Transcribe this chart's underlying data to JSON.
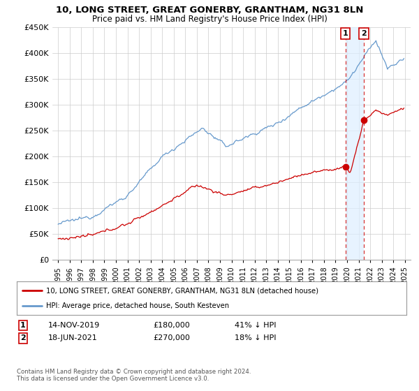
{
  "title": "10, LONG STREET, GREAT GONERBY, GRANTHAM, NG31 8LN",
  "subtitle": "Price paid vs. HM Land Registry's House Price Index (HPI)",
  "legend_line1": "10, LONG STREET, GREAT GONERBY, GRANTHAM, NG31 8LN (detached house)",
  "legend_line2": "HPI: Average price, detached house, South Kesteven",
  "footnote": "Contains HM Land Registry data © Crown copyright and database right 2024.\nThis data is licensed under the Open Government Licence v3.0.",
  "annotation1": {
    "label": "1",
    "date": "14-NOV-2019",
    "price": "£180,000",
    "pct": "41% ↓ HPI"
  },
  "annotation2": {
    "label": "2",
    "date": "18-JUN-2021",
    "price": "£270,000",
    "pct": "18% ↓ HPI"
  },
  "point1_x": 2019.87,
  "point1_y": 180000,
  "point2_x": 2021.46,
  "point2_y": 270000,
  "red_color": "#cc0000",
  "blue_color": "#6699cc",
  "shade_color": "#ddeeff",
  "bg_color": "#ffffff",
  "grid_color": "#cccccc",
  "ylim": [
    0,
    450000
  ],
  "xlim": [
    1994.5,
    2025.5
  ]
}
